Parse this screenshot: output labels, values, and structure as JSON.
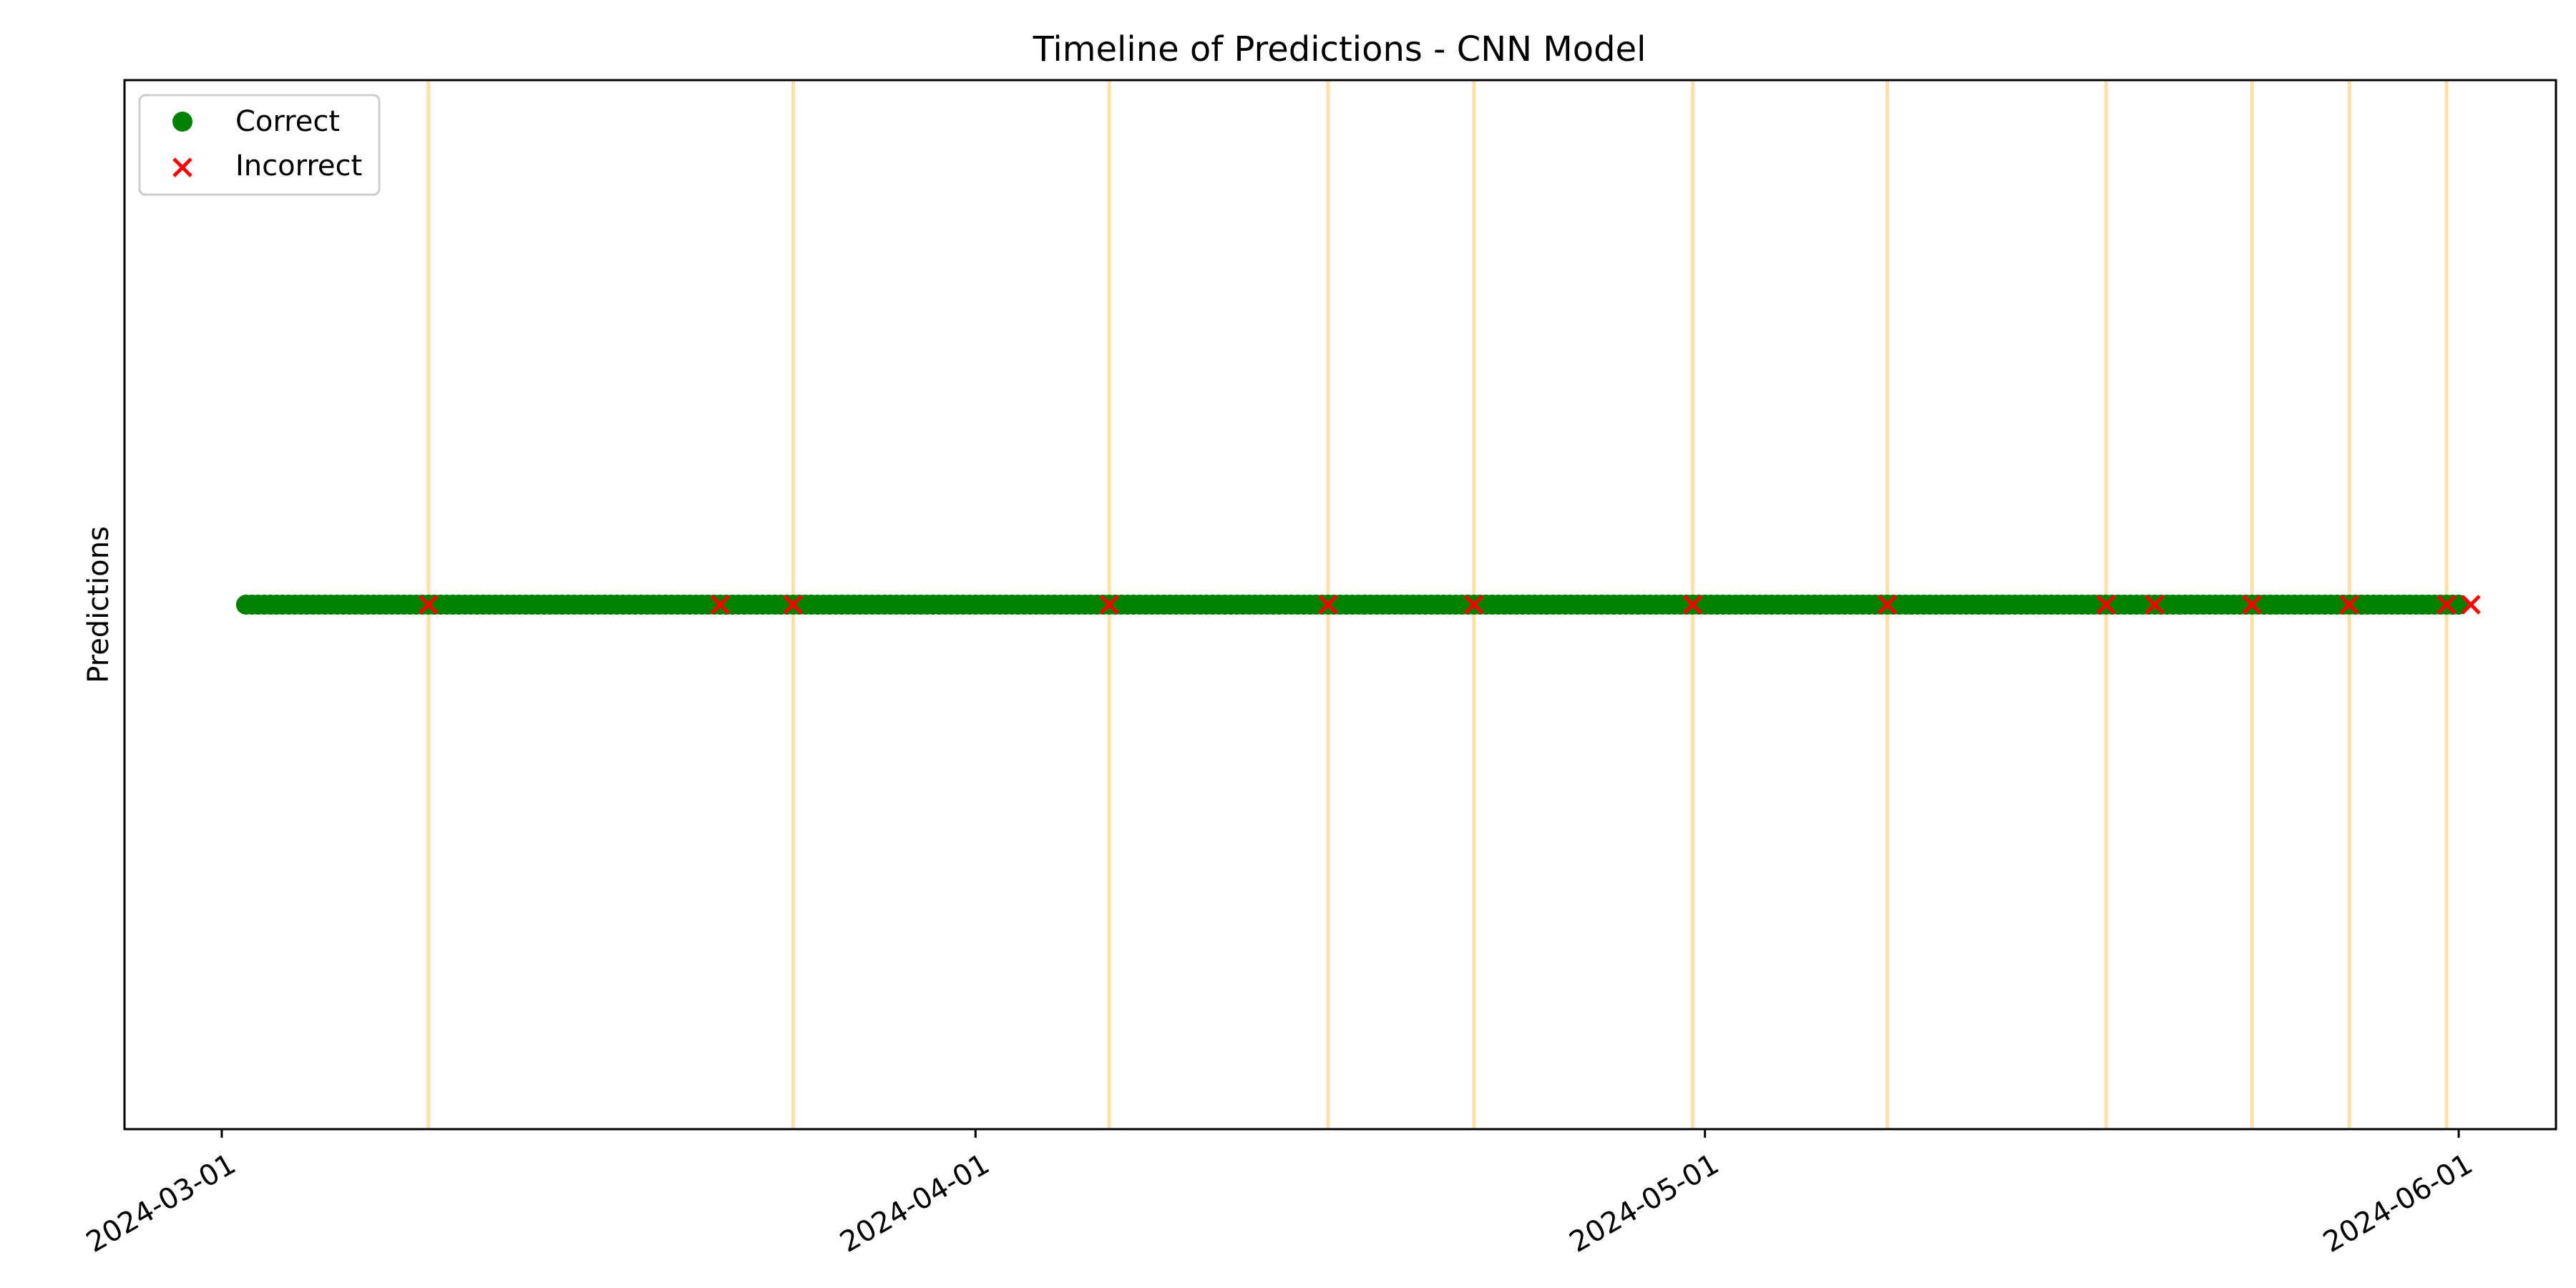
{
  "chart_data": {
    "type": "scatter",
    "title": "Timeline of Predictions - CNN Model",
    "xlabel": "",
    "ylabel": "Predictions",
    "x_axis": {
      "kind": "date",
      "range": [
        "2024-02-26",
        "2024-06-05"
      ],
      "ticks": [
        "2024-03-01",
        "2024-04-01",
        "2024-05-01",
        "2024-06-01"
      ]
    },
    "grid": false,
    "legend": {
      "placement": "top-left",
      "entries": [
        "Correct",
        "Incorrect"
      ]
    },
    "colors": {
      "correct": "#008000",
      "incorrect": "#ff0000",
      "highlight": "#ffa500"
    },
    "series": [
      {
        "name": "Correct",
        "marker": "circle",
        "date_range": [
          "2024-03-02",
          "2024-06-01"
        ],
        "frequency": "6 hours"
      },
      {
        "name": "Incorrect",
        "marker": "x",
        "dates": [
          "2024-03-09",
          "2024-03-21",
          "2024-03-24",
          "2024-04-06",
          "2024-04-15",
          "2024-04-21",
          "2024-04-30",
          "2024-05-08",
          "2024-05-17",
          "2024-05-19",
          "2024-05-23",
          "2024-05-27",
          "2024-05-31",
          "2024-06-01"
        ]
      }
    ],
    "vertical_lines": [
      "2024-03-09",
      "2024-03-24",
      "2024-04-06",
      "2024-04-15",
      "2024-04-21",
      "2024-04-30",
      "2024-05-08",
      "2024-05-17",
      "2024-05-23",
      "2024-05-27",
      "2024-05-31"
    ]
  }
}
